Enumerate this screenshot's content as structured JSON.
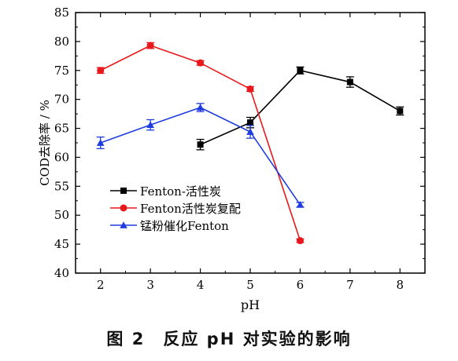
{
  "chart_data": {
    "type": "line",
    "xlabel": "pH",
    "ylabel": "COD去除率 / %",
    "xlim": [
      1.5,
      8.5
    ],
    "ylim": [
      40,
      85
    ],
    "x_ticks": [
      2,
      3,
      4,
      5,
      6,
      7,
      8
    ],
    "y_ticks": [
      40,
      45,
      50,
      55,
      60,
      65,
      70,
      75,
      80,
      85
    ],
    "legend_position": "lower-left",
    "grid": false,
    "series": [
      {
        "name": "Fenton-活性炭",
        "color": "#000000",
        "marker": "square",
        "x": [
          4,
          5,
          6,
          7,
          8
        ],
        "y": [
          62.2,
          66.0,
          75.0,
          73.0,
          68.0
        ],
        "err": [
          0.9,
          0.9,
          0.6,
          0.9,
          0.7
        ]
      },
      {
        "name": "Fenton活性炭复配",
        "color": "#e8191c",
        "marker": "circle",
        "x": [
          2,
          3,
          4,
          5,
          6
        ],
        "y": [
          75.0,
          79.3,
          76.3,
          71.8,
          45.6
        ],
        "err": [
          0.5,
          0.5,
          0.4,
          0.4,
          0.3
        ]
      },
      {
        "name": "锰粉催化Fenton",
        "color": "#1e3ce0",
        "marker": "triangle",
        "x": [
          2,
          3,
          4,
          5,
          6
        ],
        "y": [
          62.5,
          65.6,
          68.6,
          64.4,
          51.8
        ],
        "err": [
          1.0,
          0.9,
          0.7,
          1.1,
          0.4
        ]
      }
    ]
  },
  "caption": "图 2　反应 pH 对实验的影响"
}
